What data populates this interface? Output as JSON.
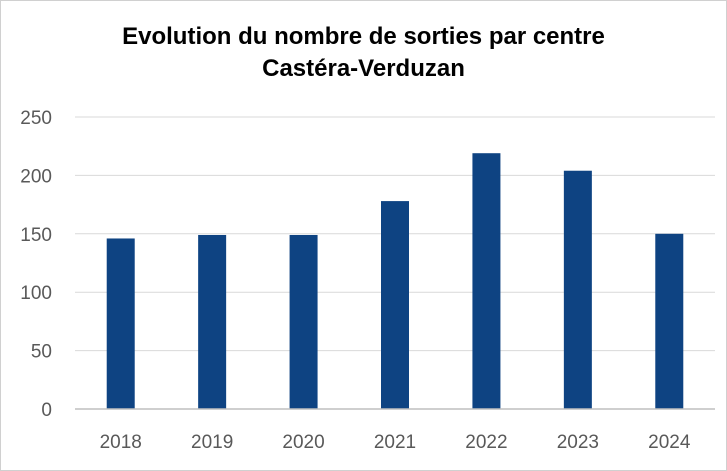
{
  "chart_data": {
    "type": "bar",
    "title_line1": "Evolution du nombre de sorties par centre",
    "title_line2": "Castéra-Verduzan",
    "xlabel": "",
    "ylabel": "",
    "categories": [
      "2018",
      "2019",
      "2020",
      "2021",
      "2022",
      "2023",
      "2024"
    ],
    "values": [
      146,
      149,
      149,
      178,
      219,
      204,
      150
    ],
    "ylim": [
      0,
      250
    ],
    "yticks": [
      0,
      50,
      100,
      150,
      200,
      250
    ],
    "grid": true,
    "legend": "none",
    "bar_color": "#0E4382",
    "grid_color": "#D9D9D9",
    "axis_color": "#BFBFBF"
  }
}
